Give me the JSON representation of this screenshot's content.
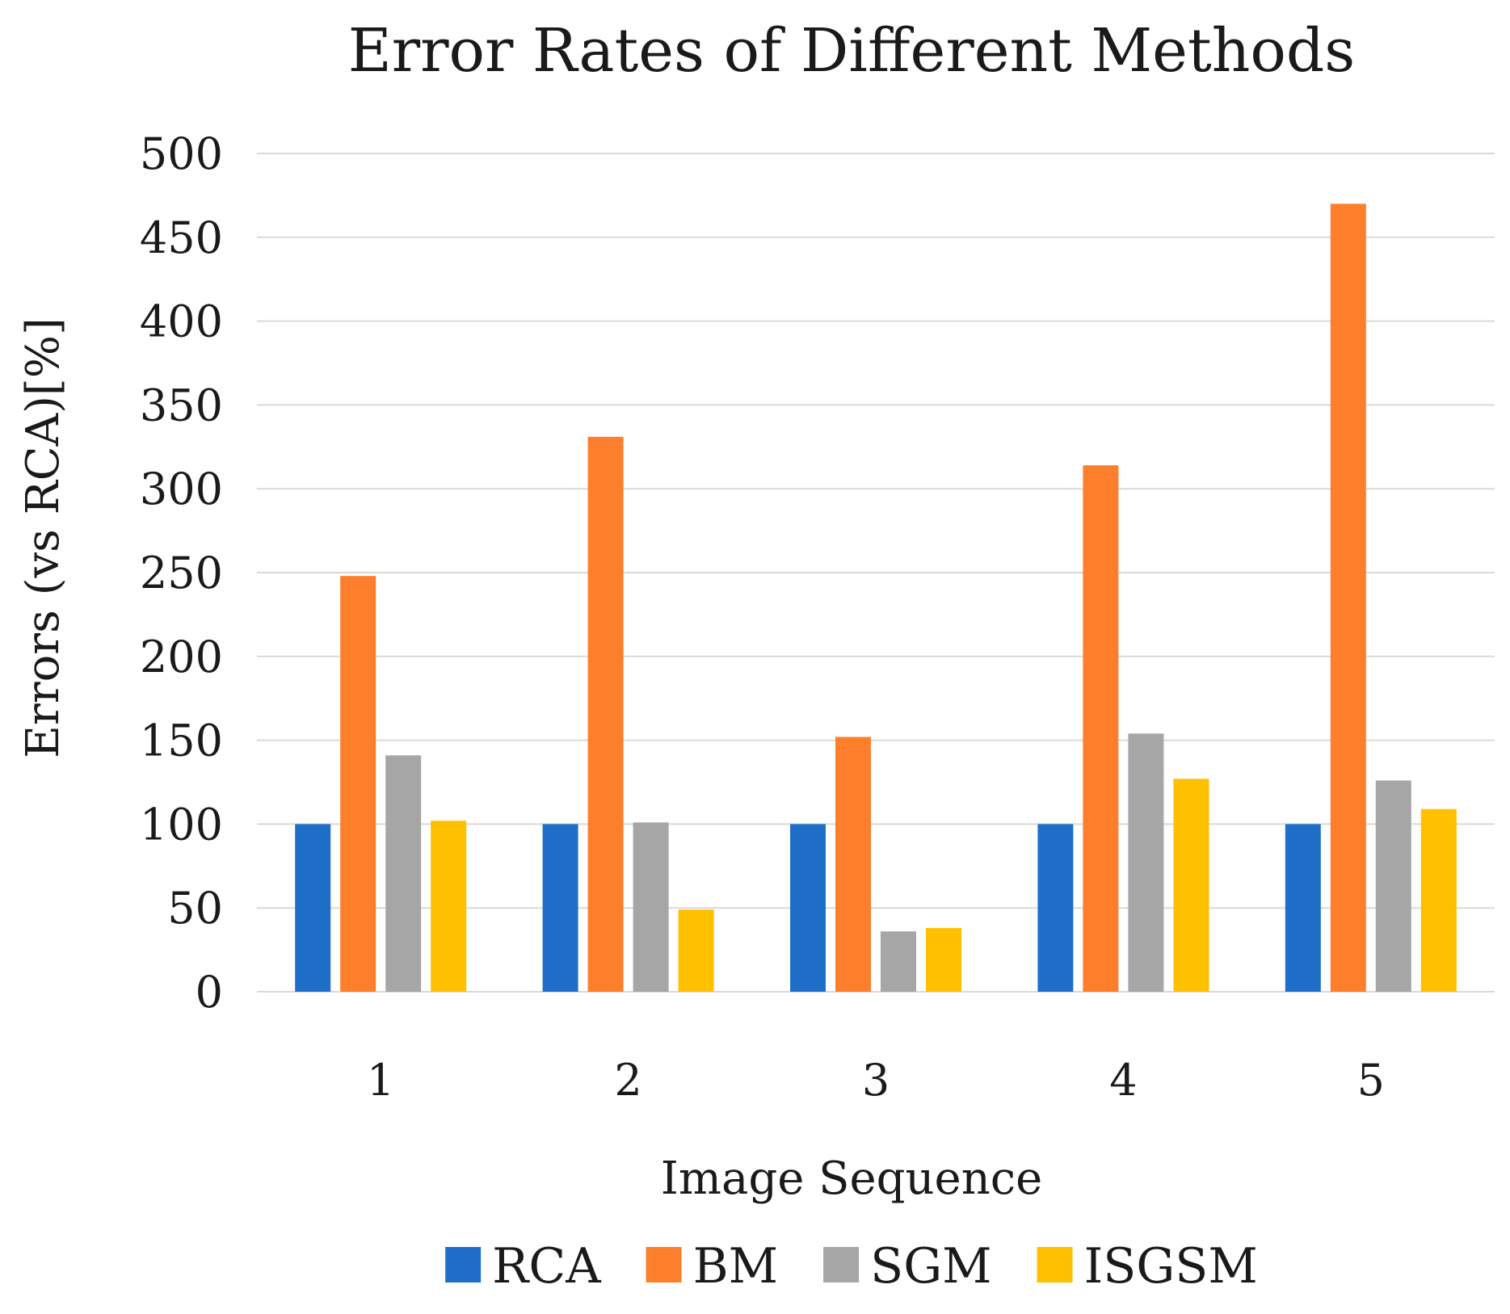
{
  "chart_data": {
    "type": "bar",
    "title": "Error Rates of Different Methods",
    "xlabel": "Image Sequence",
    "ylabel": "Errors (vs RCA)[%]",
    "categories": [
      "1",
      "2",
      "3",
      "4",
      "5"
    ],
    "ylim": [
      0,
      500
    ],
    "yticks": [
      "0",
      "50",
      "100",
      "150",
      "200",
      "250",
      "300",
      "350",
      "400",
      "450",
      "500"
    ],
    "grid": true,
    "legend_position": "bottom",
    "series": [
      {
        "name": "RCA",
        "color": "#1f6fc9",
        "values": [
          100,
          100,
          100,
          100,
          100
        ]
      },
      {
        "name": "BM",
        "color": "#fd7f2c",
        "values": [
          248,
          331,
          152,
          314,
          470
        ]
      },
      {
        "name": "SGM",
        "color": "#a6a6a6",
        "values": [
          141,
          101,
          36,
          154,
          126
        ]
      },
      {
        "name": "ISGSM",
        "color": "#ffc000",
        "values": [
          102,
          49,
          38,
          127,
          109
        ]
      }
    ]
  }
}
